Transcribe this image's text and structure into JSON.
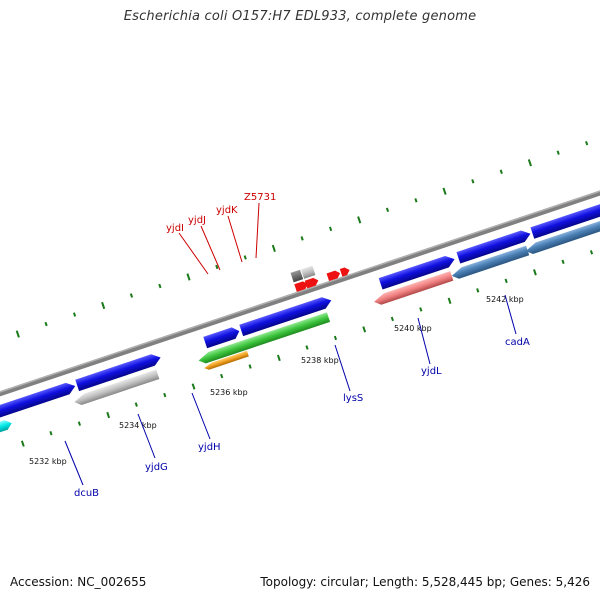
{
  "header": {
    "title": "Escherichia coli O157:H7 EDL933, complete genome"
  },
  "footer": {
    "accession": "Accession: NC_002655",
    "summary": "Topology: circular; Length: 5,528,445 bp; Genes: 5,426"
  },
  "ticks": [
    "5232 kbp",
    "5234 kbp",
    "5236 kbp",
    "5238 kbp",
    "5240 kbp",
    "5242 kbp"
  ],
  "genes_blue": [
    "dcuB",
    "yjdG",
    "yjdH",
    "lysS",
    "yjdL",
    "cadA"
  ],
  "genes_red": [
    "yjdI",
    "yjdJ",
    "yjdK",
    "Z5731"
  ],
  "colors": {
    "backbone": "#808080",
    "tick": "#1a7a1a",
    "blue_gene": "#1010e0",
    "steel_gene": "#4a7fb5",
    "gray_gene": "#c0c0c0",
    "cyan_gene": "#00e5e5",
    "green_gene": "#3cc43c",
    "orange_gene": "#f0a020",
    "pink_gene": "#f08080",
    "red_gene": "#ee1111",
    "label_blue": "#0000aa",
    "label_red": "#cc0000"
  }
}
